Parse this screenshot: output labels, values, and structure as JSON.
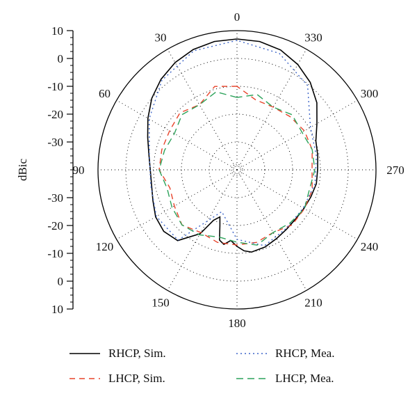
{
  "chart_data": {
    "type": "polar-line",
    "ylabel": "dBic",
    "radial_ticks": [
      "10",
      "0",
      "-10",
      "-20",
      "-30",
      "-30",
      "-20",
      "-10",
      "0",
      "10"
    ],
    "radial_range": [
      -40,
      10
    ],
    "angle_labels": [
      "0",
      "30",
      "60",
      "90",
      "120",
      "150",
      "180",
      "210",
      "240",
      "270",
      "300",
      "330"
    ],
    "angle_values": [
      0,
      30,
      60,
      90,
      120,
      150,
      180,
      210,
      240,
      270,
      300,
      330
    ],
    "angle_direction": "counterclockwise",
    "grid": true,
    "legend_position": "bottom",
    "series": [
      {
        "name": "RHCP, Sim.",
        "color": "#000000",
        "dash": "solid",
        "angles": [
          0,
          10,
          20,
          30,
          40,
          50,
          60,
          70,
          80,
          90,
          100,
          110,
          120,
          130,
          140,
          150,
          155,
          160,
          163,
          166,
          170,
          175,
          180,
          185,
          190,
          200,
          210,
          220,
          230,
          240,
          250,
          260,
          270,
          280,
          290,
          300,
          310,
          320,
          330,
          340,
          350
        ],
        "values": [
          7,
          6.8,
          6,
          4.5,
          2.5,
          0,
          -3,
          -5.8,
          -7.8,
          -8.8,
          -8.8,
          -7.8,
          -6.2,
          -5.6,
          -6.8,
          -13.5,
          -20,
          -22,
          -19,
          -14,
          -12.8,
          -14.5,
          -12.5,
          -10.8,
          -10,
          -10.5,
          -11.5,
          -12.2,
          -12.5,
          -12.2,
          -11.7,
          -11,
          -11,
          -10.5,
          -9.8,
          -6.8,
          -2.5,
          1,
          3.7,
          5.8,
          6.8
        ]
      },
      {
        "name": "LHCP, Sim.",
        "color": "#e8432a",
        "dash": "8,6",
        "angles": [
          0,
          15,
          30,
          45,
          60,
          75,
          90,
          105,
          120,
          135,
          150,
          165,
          180,
          195,
          210,
          225,
          240,
          255,
          270,
          285,
          300,
          315,
          330,
          345
        ],
        "values": [
          -10,
          -9,
          -13,
          -11,
          -12,
          -12,
          -12,
          -15,
          -14,
          -12,
          -14,
          -13,
          -13,
          -13,
          -14,
          -12,
          -12,
          -12,
          -13,
          -12,
          -12,
          -13,
          -14,
          -14
        ]
      },
      {
        "name": "RHCP, Mea.",
        "color": "#3c64c8",
        "dash": "2,4",
        "angles": [
          0,
          20,
          40,
          60,
          80,
          100,
          120,
          140,
          160,
          180,
          200,
          220,
          240,
          260,
          280,
          300,
          320,
          340
        ],
        "values": [
          6.5,
          5.5,
          2,
          -3.5,
          -8,
          -8.5,
          -6.5,
          -7,
          -24,
          -15,
          -11,
          -12.5,
          -12.5,
          -11.5,
          -11,
          -9.5,
          -0.5,
          4.5
        ]
      },
      {
        "name": "LHCP, Mea.",
        "color": "#2ca25a",
        "dash": "10,6",
        "angles": [
          0,
          15,
          30,
          45,
          60,
          75,
          90,
          105,
          120,
          135,
          150,
          165,
          180,
          195,
          210,
          225,
          240,
          255,
          270,
          285,
          300,
          315,
          330,
          345
        ],
        "values": [
          -14,
          -11,
          -13,
          -12,
          -14,
          -13,
          -12,
          -14,
          -13,
          -12,
          -13,
          -15,
          -14,
          -12,
          -14,
          -13,
          -12,
          -13,
          -12,
          -12,
          -13,
          -12,
          -14,
          -12
        ]
      }
    ]
  }
}
